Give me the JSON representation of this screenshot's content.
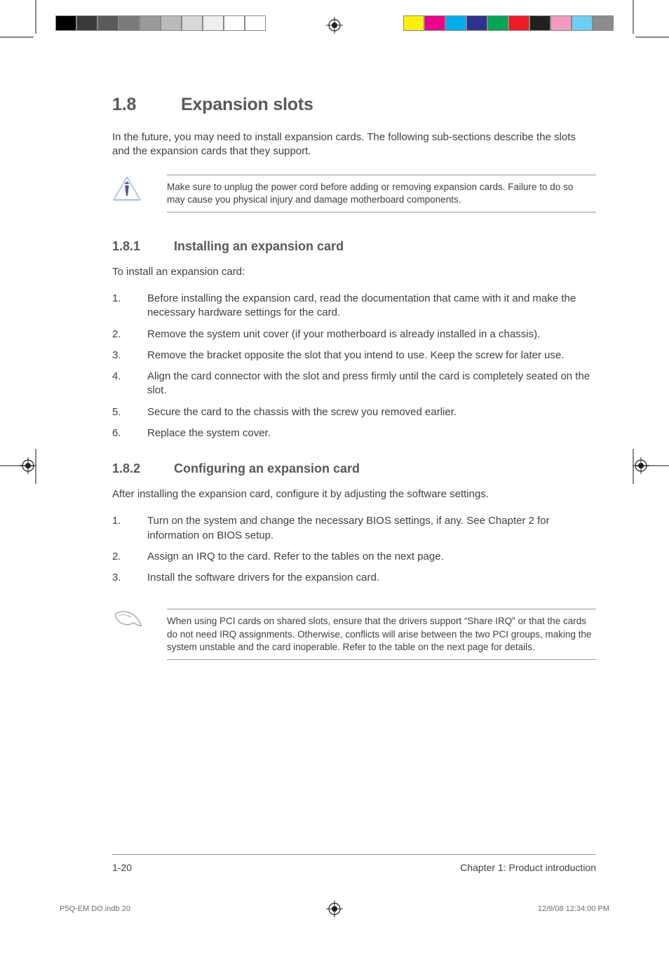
{
  "printer_marks": {
    "left_bar_colors": [
      "#000000",
      "#3a3a3a",
      "#5a5a5a",
      "#7a7a7a",
      "#9a9a9a",
      "#bababa",
      "#d8d8d8",
      "#efefef",
      "#ffffff",
      "#ffffff"
    ],
    "right_bar_colors": [
      "#fff200",
      "#ec008c",
      "#00aeef",
      "#2e3192",
      "#00a651",
      "#ed1c24",
      "#231f20",
      "#f49ac1",
      "#6dcff6",
      "#8a8c8e"
    ]
  },
  "section": {
    "number": "1.8",
    "title": "Expansion slots",
    "intro": "In the future, you may need to install expansion cards. The following sub-sections describe the slots and the expansion cards that they support.",
    "warning": "Make sure to unplug the power cord before adding or removing expansion cards. Failure to do so may cause you physical injury and damage motherboard components."
  },
  "sub1": {
    "number": "1.8.1",
    "title": "Installing an expansion card",
    "lead": "To install an expansion card:",
    "steps": [
      "Before installing the expansion card, read the documentation that came with it and make the necessary hardware settings for the card.",
      "Remove the system unit cover (if your motherboard is already installed in a chassis).",
      "Remove the bracket opposite the slot that you intend to use. Keep the screw for later use.",
      "Align the card connector with the slot and press firmly until the card is completely seated on the slot.",
      "Secure the card to the chassis with the screw you removed earlier.",
      "Replace the system cover."
    ]
  },
  "sub2": {
    "number": "1.8.2",
    "title": "Configuring an expansion card",
    "lead": "After installing the expansion card, configure it by adjusting the software settings.",
    "steps": [
      "Turn on the system and change the necessary BIOS settings, if any. See Chapter 2 for information on BIOS setup.",
      "Assign an IRQ to the card. Refer to the tables on the next page.",
      "Install the software drivers for the expansion card."
    ],
    "note": "When using PCI cards on shared slots, ensure that the drivers support “Share IRQ” or that the cards do not need IRQ assignments. Otherwise, conflicts will arise between the two PCI groups, making the system unstable and the card inoperable. Refer to the table on the next page for details."
  },
  "footer": {
    "page_num": "1-20",
    "chapter": "Chapter 1: Product introduction"
  },
  "slug": {
    "file": "P5Q-EM DO.indb   20",
    "timestamp": "12/9/08   12:34:00 PM"
  }
}
